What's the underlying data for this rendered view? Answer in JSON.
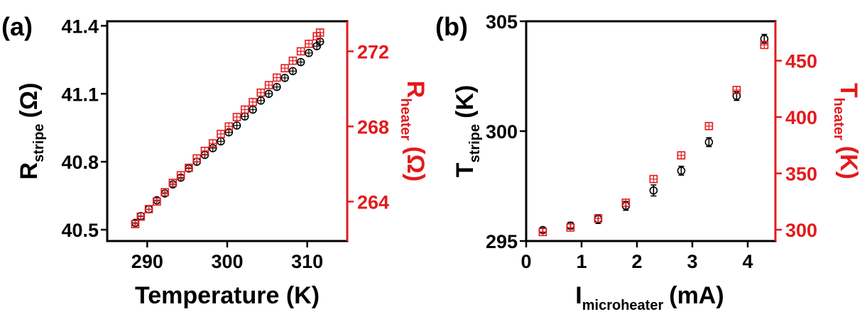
{
  "colors": {
    "black_series": "#000000",
    "red_series": "#e31a1c"
  },
  "chart_data": [
    {
      "panel_label": "(a)",
      "type": "scatter",
      "xlabel": "Temperature (K)",
      "ylabel": {
        "main": "R",
        "sub": "stripe",
        "unit": "(Ω)"
      },
      "y2label": {
        "main": "R",
        "sub": "heater",
        "unit": "(Ω)"
      },
      "xlim": [
        285,
        315
      ],
      "ylim": [
        40.45,
        41.42
      ],
      "y2lim": [
        261.9,
        273.6
      ],
      "xticks": [
        "290",
        "300",
        "310"
      ],
      "yticks": [
        "40.5",
        "40.8",
        "41.1",
        "41.4"
      ],
      "y2ticks": [
        "264",
        "268",
        "272"
      ],
      "grid": false,
      "series": [
        {
          "axis": "left",
          "marker": "circle-cross",
          "color": "#000000",
          "points": [
            [
              288.5,
              40.53
            ],
            [
              289.2,
              40.56
            ],
            [
              290.2,
              40.59
            ],
            [
              291.2,
              40.63
            ],
            [
              292.2,
              40.66
            ],
            [
              293.2,
              40.7
            ],
            [
              294.2,
              40.73
            ],
            [
              295.2,
              40.77
            ],
            [
              296.2,
              40.8
            ],
            [
              297.2,
              40.83
            ],
            [
              298.2,
              40.86
            ],
            [
              299.2,
              40.89
            ],
            [
              300.2,
              40.93
            ],
            [
              301.2,
              40.96
            ],
            [
              302.2,
              41.0
            ],
            [
              303.2,
              41.03
            ],
            [
              304.2,
              41.07
            ],
            [
              305.2,
              41.1
            ],
            [
              306.2,
              41.13
            ],
            [
              307.2,
              41.17
            ],
            [
              308.2,
              41.2
            ],
            [
              309.2,
              41.24
            ],
            [
              310.2,
              41.28
            ],
            [
              311.2,
              41.31
            ],
            [
              311.6,
              41.33
            ]
          ]
        },
        {
          "axis": "right",
          "marker": "square-cross",
          "color": "#e31a1c",
          "points": [
            [
              288.5,
              262.8
            ],
            [
              289.2,
              263.2
            ],
            [
              290.2,
              263.6
            ],
            [
              291.2,
              264.0
            ],
            [
              292.2,
              264.5
            ],
            [
              293.2,
              265.0
            ],
            [
              294.2,
              265.4
            ],
            [
              295.2,
              265.8
            ],
            [
              296.2,
              266.3
            ],
            [
              297.2,
              266.7
            ],
            [
              298.2,
              267.1
            ],
            [
              299.2,
              267.6
            ],
            [
              300.2,
              268.0
            ],
            [
              301.2,
              268.5
            ],
            [
              302.2,
              268.9
            ],
            [
              303.2,
              269.3
            ],
            [
              304.2,
              269.8
            ],
            [
              305.2,
              270.2
            ],
            [
              306.2,
              270.6
            ],
            [
              307.2,
              271.1
            ],
            [
              308.2,
              271.5
            ],
            [
              309.2,
              272.0
            ],
            [
              310.2,
              272.4
            ],
            [
              311.2,
              272.8
            ],
            [
              311.6,
              273.0
            ]
          ]
        }
      ]
    },
    {
      "panel_label": "(b)",
      "type": "scatter",
      "xlabel": {
        "main": "I",
        "sub": "microheater",
        "unit": "(mA)"
      },
      "ylabel": {
        "main": "T",
        "sub": "stripe",
        "unit": "(K)"
      },
      "y2label": {
        "main": "T",
        "sub": "heater",
        "unit": "(K)"
      },
      "xlim": [
        0,
        4.5
      ],
      "ylim": [
        295,
        305
      ],
      "y2lim": [
        290,
        485
      ],
      "xticks": [
        "0",
        "1",
        "2",
        "3",
        "4"
      ],
      "yticks": [
        "295",
        "300",
        "305"
      ],
      "y2ticks": [
        "300",
        "350",
        "400",
        "450"
      ],
      "grid": false,
      "series": [
        {
          "axis": "left",
          "marker": "circle",
          "color": "#000000",
          "error_bars": true,
          "points": [
            [
              0.3,
              295.5
            ],
            [
              0.8,
              295.7
            ],
            [
              1.3,
              296.0
            ],
            [
              1.8,
              296.6
            ],
            [
              2.3,
              297.3
            ],
            [
              2.8,
              298.2
            ],
            [
              3.3,
              299.5
            ],
            [
              3.8,
              301.6
            ],
            [
              4.3,
              304.2
            ]
          ],
          "errors": [
            0.1,
            0.15,
            0.2,
            0.2,
            0.25,
            0.2,
            0.2,
            0.2,
            0.2
          ]
        },
        {
          "axis": "right",
          "marker": "square-cross",
          "color": "#e31a1c",
          "points": [
            [
              0.3,
              298
            ],
            [
              0.8,
              302
            ],
            [
              1.3,
              310
            ],
            [
              1.8,
              324
            ],
            [
              2.3,
              345
            ],
            [
              2.8,
              366
            ],
            [
              3.3,
              392
            ],
            [
              3.8,
              424
            ],
            [
              4.3,
              464
            ]
          ]
        }
      ]
    }
  ]
}
